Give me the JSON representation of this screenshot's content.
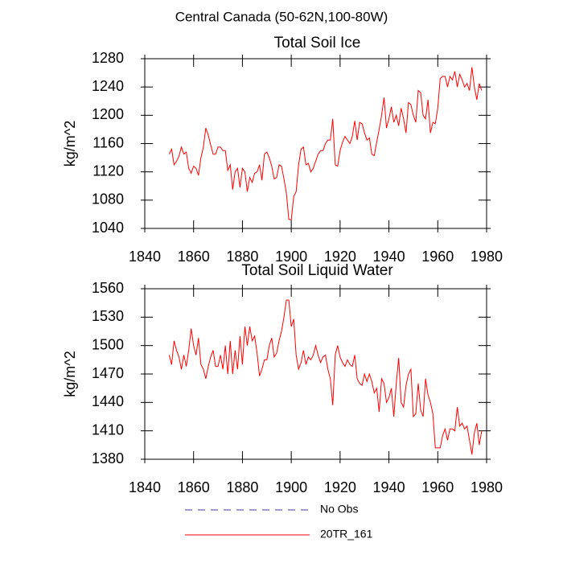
{
  "title": "Central Canada (50-62N,100-80W)",
  "legend": [
    {
      "name": "No Obs",
      "color": "#3a3aa8",
      "linestyle": "dashed"
    }
  ],
  "chart_data": [
    {
      "type": "line",
      "title": "Total Soil Ice",
      "ylabel": "kg/m^2",
      "xlim": [
        1840,
        1980
      ],
      "xticks": [
        1840,
        1860,
        1880,
        1900,
        1920,
        1940,
        1960,
        1980
      ],
      "ylim": [
        1040,
        1280
      ],
      "yticks": [
        1040,
        1080,
        1120,
        1160,
        1200,
        1240,
        1280
      ],
      "x": [
        1850,
        1851,
        1852,
        1853,
        1854,
        1855,
        1856,
        1857,
        1858,
        1859,
        1860,
        1861,
        1862,
        1863,
        1864,
        1865,
        1866,
        1867,
        1868,
        1869,
        1870,
        1871,
        1872,
        1873,
        1874,
        1875,
        1876,
        1877,
        1878,
        1879,
        1880,
        1881,
        1882,
        1883,
        1884,
        1885,
        1886,
        1887,
        1888,
        1889,
        1890,
        1891,
        1892,
        1893,
        1894,
        1895,
        1896,
        1897,
        1898,
        1899,
        1900,
        1901,
        1902,
        1903,
        1904,
        1905,
        1906,
        1907,
        1908,
        1909,
        1910,
        1911,
        1912,
        1913,
        1914,
        1915,
        1916,
        1917,
        1918,
        1919,
        1920,
        1921,
        1922,
        1923,
        1924,
        1925,
        1926,
        1927,
        1928,
        1929,
        1930,
        1931,
        1932,
        1933,
        1934,
        1935,
        1936,
        1937,
        1938,
        1939,
        1940,
        1941,
        1942,
        1943,
        1944,
        1945,
        1946,
        1947,
        1948,
        1949,
        1950,
        1951,
        1952,
        1953,
        1954,
        1955,
        1956,
        1957,
        1958,
        1959,
        1960,
        1961,
        1962,
        1963,
        1964,
        1965,
        1966,
        1967,
        1968,
        1969,
        1970,
        1971,
        1972,
        1973,
        1974,
        1975,
        1976,
        1977,
        1978
      ],
      "series": [
        {
          "name": "20TR_161",
          "color": "#ff0000",
          "values": [
            1145,
            1152,
            1130,
            1135,
            1142,
            1155,
            1145,
            1148,
            1125,
            1118,
            1128,
            1125,
            1115,
            1140,
            1155,
            1182,
            1172,
            1158,
            1145,
            1145,
            1155,
            1155,
            1150,
            1150,
            1122,
            1130,
            1095,
            1120,
            1125,
            1098,
            1125,
            1120,
            1092,
            1112,
            1105,
            1118,
            1120,
            1130,
            1108,
            1145,
            1148,
            1140,
            1128,
            1110,
            1112,
            1130,
            1128,
            1110,
            1090,
            1053,
            1052,
            1085,
            1092,
            1130,
            1152,
            1155,
            1130,
            1132,
            1120,
            1125,
            1135,
            1145,
            1150,
            1150,
            1160,
            1165,
            1165,
            1195,
            1130,
            1128,
            1150,
            1162,
            1170,
            1165,
            1160,
            1170,
            1192,
            1165,
            1190,
            1188,
            1175,
            1165,
            1168,
            1145,
            1143,
            1162,
            1180,
            1200,
            1225,
            1182,
            1195,
            1212,
            1190,
            1200,
            1185,
            1210,
            1195,
            1175,
            1218,
            1215,
            1200,
            1190,
            1235,
            1232,
            1200,
            1195,
            1222,
            1175,
            1190,
            1188,
            1210,
            1252,
            1255,
            1255,
            1240,
            1255,
            1250,
            1262,
            1240,
            1258,
            1250,
            1240,
            1245,
            1235,
            1268,
            1240,
            1222,
            1245,
            1235
          ]
        }
      ]
    },
    {
      "type": "line",
      "title": "Total Soil Liquid Water",
      "ylabel": "kg/m^2",
      "xlim": [
        1840,
        1980
      ],
      "xticks": [
        1840,
        1860,
        1880,
        1900,
        1920,
        1940,
        1960,
        1980
      ],
      "ylim": [
        1380,
        1560
      ],
      "yticks": [
        1380,
        1410,
        1440,
        1470,
        1500,
        1530,
        1560
      ],
      "x": [
        1850,
        1851,
        1852,
        1853,
        1854,
        1855,
        1856,
        1857,
        1858,
        1859,
        1860,
        1861,
        1862,
        1863,
        1864,
        1865,
        1866,
        1867,
        1868,
        1869,
        1870,
        1871,
        1872,
        1873,
        1874,
        1875,
        1876,
        1877,
        1878,
        1879,
        1880,
        1881,
        1882,
        1883,
        1884,
        1885,
        1886,
        1887,
        1888,
        1889,
        1890,
        1891,
        1892,
        1893,
        1894,
        1895,
        1896,
        1897,
        1898,
        1899,
        1900,
        1901,
        1902,
        1903,
        1904,
        1905,
        1906,
        1907,
        1908,
        1909,
        1910,
        1911,
        1912,
        1913,
        1914,
        1915,
        1916,
        1917,
        1918,
        1919,
        1920,
        1921,
        1922,
        1923,
        1924,
        1925,
        1926,
        1927,
        1928,
        1929,
        1930,
        1931,
        1932,
        1933,
        1934,
        1935,
        1936,
        1937,
        1938,
        1939,
        1940,
        1941,
        1942,
        1943,
        1944,
        1945,
        1946,
        1947,
        1948,
        1949,
        1950,
        1951,
        1952,
        1953,
        1954,
        1955,
        1956,
        1957,
        1958,
        1959,
        1960,
        1961,
        1962,
        1963,
        1964,
        1965,
        1966,
        1967,
        1968,
        1969,
        1970,
        1971,
        1972,
        1973,
        1974,
        1975,
        1976,
        1977,
        1978
      ],
      "series": [
        {
          "color": "#ff0000",
          "values": [
            1490,
            1480,
            1505,
            1495,
            1488,
            1475,
            1490,
            1478,
            1495,
            1518,
            1500,
            1490,
            1508,
            1480,
            1475,
            1465,
            1478,
            1488,
            1495,
            1478,
            1478,
            1490,
            1475,
            1500,
            1470,
            1505,
            1470,
            1495,
            1475,
            1510,
            1480,
            1520,
            1500,
            1520,
            1505,
            1510,
            1492,
            1468,
            1475,
            1485,
            1485,
            1500,
            1508,
            1488,
            1492,
            1505,
            1515,
            1530,
            1548,
            1548,
            1520,
            1528,
            1490,
            1475,
            1482,
            1495,
            1480,
            1488,
            1485,
            1490,
            1500,
            1490,
            1482,
            1488,
            1490,
            1475,
            1465,
            1437,
            1490,
            1500,
            1488,
            1482,
            1478,
            1485,
            1480,
            1478,
            1490,
            1465,
            1460,
            1458,
            1470,
            1462,
            1470,
            1462,
            1450,
            1455,
            1430,
            1465,
            1460,
            1440,
            1445,
            1455,
            1425,
            1460,
            1487,
            1440,
            1435,
            1458,
            1470,
            1475,
            1425,
            1428,
            1460,
            1432,
            1425,
            1465,
            1448,
            1440,
            1428,
            1392,
            1392,
            1392,
            1405,
            1412,
            1400,
            1412,
            1412,
            1410,
            1435,
            1415,
            1418,
            1412,
            1415,
            1400,
            1385,
            1408,
            1418,
            1395,
            1410
          ]
        }
      ]
    }
  ]
}
